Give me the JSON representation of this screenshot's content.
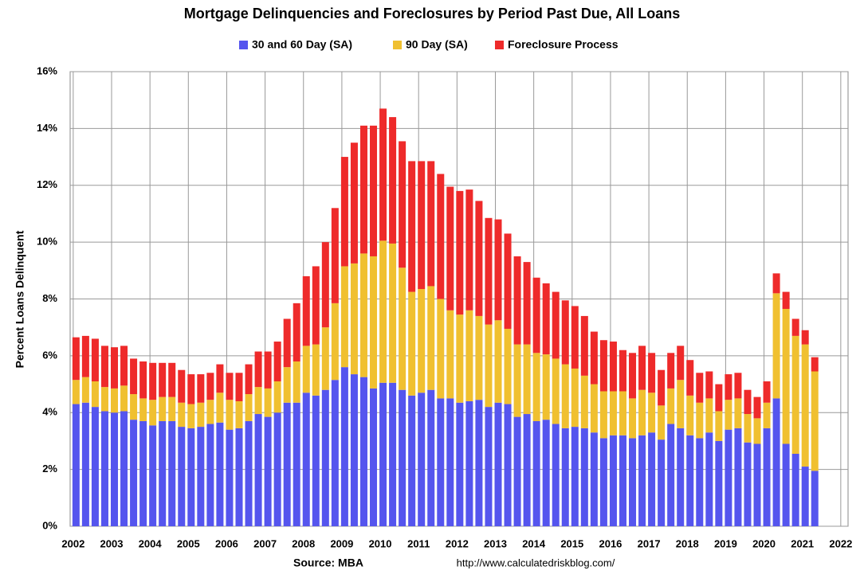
{
  "chart_data": {
    "type": "stacked-bar",
    "title": "Mortgage Delinquencies and Foreclosures by Period Past Due, All Loans",
    "y_label": "Percent Loans Delinquent",
    "source": "Source: MBA",
    "url": "http://www.calculatedriskblog.com/",
    "x": [
      2002,
      2002.25,
      2002.5,
      2002.75,
      2003,
      2003.25,
      2003.5,
      2003.75,
      2004,
      2004.25,
      2004.5,
      2004.75,
      2005,
      2005.25,
      2005.5,
      2005.75,
      2006,
      2006.25,
      2006.5,
      2006.75,
      2007,
      2007.25,
      2007.5,
      2007.75,
      2008,
      2008.25,
      2008.5,
      2008.75,
      2009,
      2009.25,
      2009.5,
      2009.75,
      2010,
      2010.25,
      2010.5,
      2010.75,
      2011,
      2011.25,
      2011.5,
      2011.75,
      2012,
      2012.25,
      2012.5,
      2012.75,
      2013,
      2013.25,
      2013.5,
      2013.75,
      2014,
      2014.25,
      2014.5,
      2014.75,
      2015,
      2015.25,
      2015.5,
      2015.75,
      2016,
      2016.25,
      2016.5,
      2016.75,
      2017,
      2017.25,
      2017.5,
      2017.75,
      2018,
      2018.25,
      2018.5,
      2018.75,
      2019,
      2019.25,
      2019.5,
      2019.75,
      2020,
      2020.25,
      2020.5,
      2020.75,
      2021,
      2021.25
    ],
    "series": [
      {
        "name": "30 and 60 Day (SA)",
        "color": "#5555ee",
        "values": [
          4.3,
          4.35,
          4.2,
          4.05,
          4.0,
          4.05,
          3.75,
          3.7,
          3.55,
          3.7,
          3.7,
          3.5,
          3.45,
          3.5,
          3.6,
          3.65,
          3.4,
          3.45,
          3.7,
          3.95,
          3.85,
          4.0,
          4.35,
          4.35,
          4.7,
          4.6,
          4.8,
          5.15,
          5.6,
          5.35,
          5.25,
          4.85,
          5.05,
          5.05,
          4.8,
          4.6,
          4.7,
          4.8,
          4.5,
          4.5,
          4.35,
          4.4,
          4.45,
          4.2,
          4.35,
          4.3,
          3.85,
          3.95,
          3.7,
          3.75,
          3.6,
          3.45,
          3.5,
          3.45,
          3.3,
          3.1,
          3.2,
          3.2,
          3.1,
          3.2,
          3.3,
          3.05,
          3.6,
          3.45,
          3.2,
          3.1,
          3.3,
          3.0,
          3.4,
          3.45,
          2.95,
          2.9,
          3.45,
          4.5,
          2.9,
          2.55,
          2.1,
          1.95
        ]
      },
      {
        "name": "90 Day (SA)",
        "color": "#f0c030",
        "values": [
          0.85,
          0.9,
          0.9,
          0.85,
          0.85,
          0.9,
          0.9,
          0.8,
          0.9,
          0.85,
          0.85,
          0.85,
          0.85,
          0.85,
          0.85,
          1.05,
          1.05,
          0.95,
          0.95,
          0.95,
          1.0,
          1.1,
          1.25,
          1.45,
          1.65,
          1.8,
          2.2,
          2.7,
          3.55,
          3.9,
          4.35,
          4.65,
          5.0,
          4.9,
          4.3,
          3.65,
          3.65,
          3.65,
          3.5,
          3.1,
          3.1,
          3.2,
          2.95,
          2.9,
          2.9,
          2.65,
          2.55,
          2.45,
          2.4,
          2.3,
          2.3,
          2.25,
          2.05,
          1.85,
          1.7,
          1.65,
          1.55,
          1.55,
          1.4,
          1.6,
          1.4,
          1.2,
          1.25,
          1.7,
          1.4,
          1.25,
          1.2,
          1.05,
          1.05,
          1.05,
          1.0,
          0.9,
          0.9,
          3.7,
          4.75,
          4.15,
          4.3,
          3.5
        ]
      },
      {
        "name": "Foreclosure Process",
        "color": "#ee2a2a",
        "values": [
          1.5,
          1.45,
          1.5,
          1.45,
          1.45,
          1.4,
          1.25,
          1.3,
          1.3,
          1.2,
          1.2,
          1.15,
          1.05,
          1.0,
          0.95,
          1.0,
          0.95,
          1.0,
          1.05,
          1.25,
          1.3,
          1.4,
          1.7,
          2.05,
          2.45,
          2.75,
          3.0,
          3.35,
          3.85,
          4.25,
          4.5,
          4.6,
          4.65,
          4.45,
          4.45,
          4.6,
          4.5,
          4.4,
          4.4,
          4.35,
          4.35,
          4.25,
          4.05,
          3.75,
          3.55,
          3.35,
          3.1,
          2.9,
          2.65,
          2.5,
          2.35,
          2.25,
          2.2,
          2.1,
          1.85,
          1.8,
          1.75,
          1.45,
          1.6,
          1.55,
          1.4,
          1.25,
          1.25,
          1.2,
          1.25,
          1.05,
          0.95,
          0.95,
          0.9,
          0.9,
          0.85,
          0.75,
          0.75,
          0.7,
          0.6,
          0.6,
          0.5,
          0.5
        ]
      }
    ],
    "xlim": [
      2001.92,
      2022.19
    ],
    "xticks": [
      2002,
      2003,
      2004,
      2005,
      2006,
      2007,
      2008,
      2009,
      2010,
      2011,
      2012,
      2013,
      2014,
      2015,
      2016,
      2017,
      2018,
      2019,
      2020,
      2021,
      2022
    ],
    "ylim": [
      0,
      16
    ],
    "yticks": [
      {
        "value": 0,
        "label": "0%"
      },
      {
        "value": 2,
        "label": "2%"
      },
      {
        "value": 4,
        "label": "4%"
      },
      {
        "value": 6,
        "label": "6%"
      },
      {
        "value": 8,
        "label": "8%"
      },
      {
        "value": 10,
        "label": "10%"
      },
      {
        "value": 12,
        "label": "12%"
      },
      {
        "value": 14,
        "label": "14%"
      },
      {
        "value": 16,
        "label": "16%"
      }
    ],
    "grid": true
  }
}
